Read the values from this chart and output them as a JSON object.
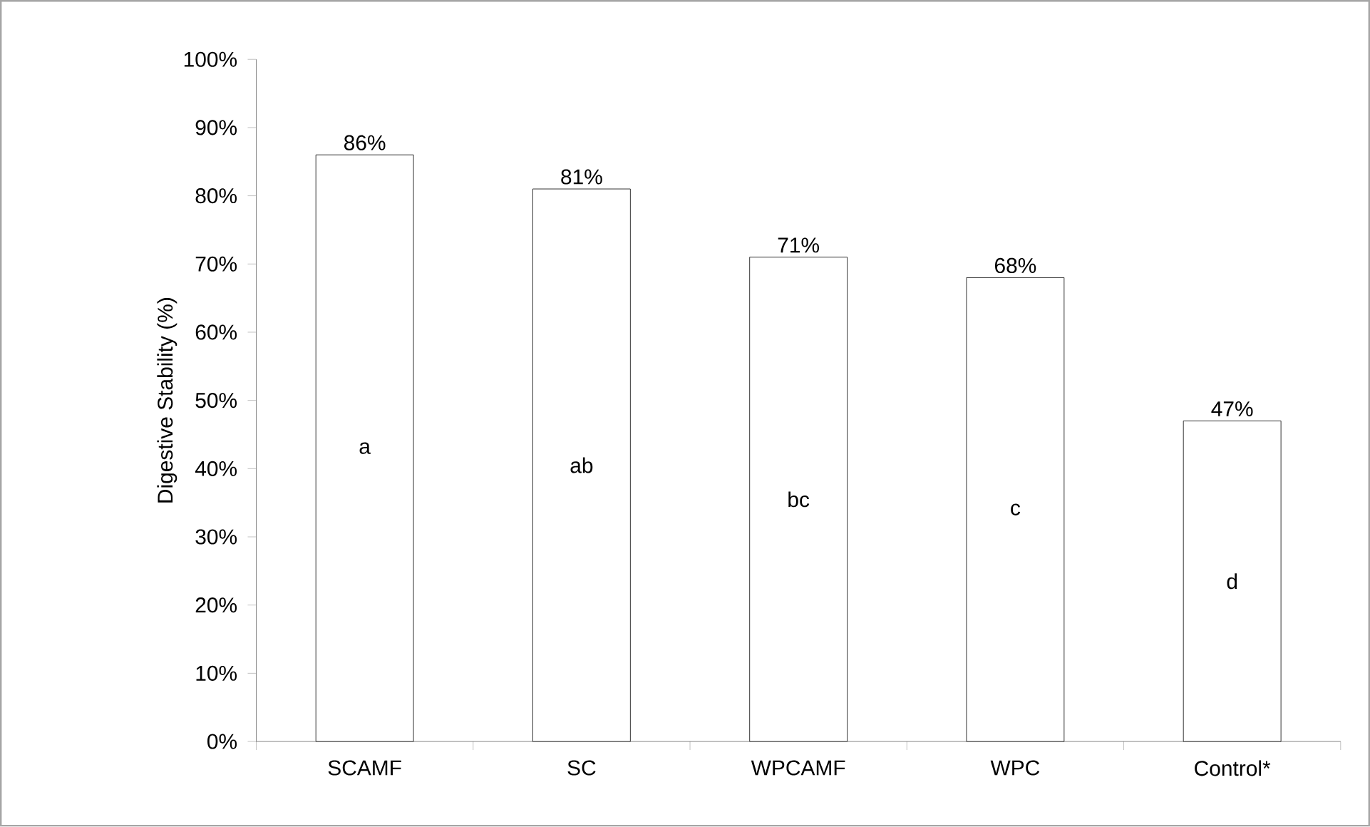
{
  "chart_data": {
    "type": "bar",
    "ylabel": "Digestive Stability (%)",
    "categories": [
      "SCAMF",
      "SC",
      "WPCAMF",
      "WPC",
      "Control*"
    ],
    "values": [
      86,
      81,
      71,
      68,
      47
    ],
    "value_labels": [
      "86%",
      "81%",
      "71%",
      "68%",
      "47%"
    ],
    "color": "#ffffff",
    "ylim": [
      0,
      100
    ],
    "yticks": [
      {
        "value": 0,
        "label": "0%"
      },
      {
        "value": 10,
        "label": "10%"
      },
      {
        "value": 20,
        "label": "20%"
      },
      {
        "value": 30,
        "label": "30%"
      },
      {
        "value": 40,
        "label": "40%"
      },
      {
        "value": 50,
        "label": "50%"
      },
      {
        "value": 60,
        "label": "60%"
      },
      {
        "value": 70,
        "label": "70%"
      },
      {
        "value": 80,
        "label": "80%"
      },
      {
        "value": 90,
        "label": "90%"
      },
      {
        "value": 100,
        "label": "100%"
      }
    ],
    "annotations": [
      "a",
      "ab",
      "bc",
      "c",
      "d"
    ],
    "grid": false
  }
}
